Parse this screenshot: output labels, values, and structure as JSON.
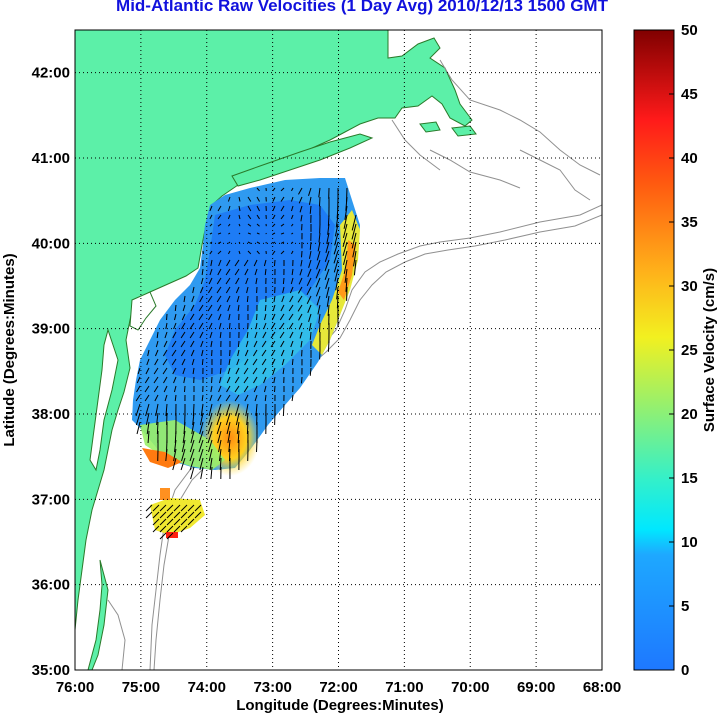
{
  "title": "Mid-Atlantic Raw Velocities (1 Day Avg) 2010/12/13 1500 GMT",
  "colors": {
    "land": "#5cf0a8",
    "coast": "#228b22",
    "bathymetry": "#909090",
    "grid": "#000000",
    "arrow": "#000000"
  },
  "chart_data": {
    "type": "heatmap",
    "xlabel": "Longitude (Degrees:Minutes)",
    "ylabel": "Latitude (Degrees:Minutes)",
    "xlim": [
      -76,
      -68
    ],
    "ylim": [
      35,
      42.5
    ],
    "x_ticks": [
      {
        "value": -76,
        "label": "76:00"
      },
      {
        "value": -75,
        "label": "75:00"
      },
      {
        "value": -74,
        "label": "74:00"
      },
      {
        "value": -73,
        "label": "73:00"
      },
      {
        "value": -72,
        "label": "72:00"
      },
      {
        "value": -71,
        "label": "71:00"
      },
      {
        "value": -70,
        "label": "70:00"
      },
      {
        "value": -69,
        "label": "69:00"
      },
      {
        "value": -68,
        "label": "68:00"
      }
    ],
    "y_ticks": [
      {
        "value": 35,
        "label": "35:00"
      },
      {
        "value": 36,
        "label": "36:00"
      },
      {
        "value": 37,
        "label": "37:00"
      },
      {
        "value": 38,
        "label": "38:00"
      },
      {
        "value": 39,
        "label": "39:00"
      },
      {
        "value": 40,
        "label": "40:00"
      },
      {
        "value": 41,
        "label": "41:00"
      },
      {
        "value": 42,
        "label": "42:00"
      }
    ],
    "grid": true,
    "colorbar": {
      "label": "Surface Velocity (cm/s)",
      "range": [
        0,
        50
      ],
      "ticks": [
        {
          "value": 0,
          "label": "0"
        },
        {
          "value": 5,
          "label": "5"
        },
        {
          "value": 10,
          "label": "10"
        },
        {
          "value": 15,
          "label": "15"
        },
        {
          "value": 20,
          "label": "20"
        },
        {
          "value": 25,
          "label": "25"
        },
        {
          "value": 30,
          "label": "30"
        },
        {
          "value": 35,
          "label": "35"
        },
        {
          "value": 40,
          "label": "40"
        },
        {
          "value": 45,
          "label": "45"
        },
        {
          "value": 50,
          "label": "50"
        }
      ],
      "colormap": "jet"
    },
    "velocity_field": [
      {
        "lon": -74.5,
        "lat": 40.2,
        "speed": 7
      },
      {
        "lon": -73.5,
        "lat": 40.3,
        "speed": 8
      },
      {
        "lon": -72.5,
        "lat": 40.4,
        "speed": 12
      },
      {
        "lon": -72.1,
        "lat": 39.9,
        "speed": 26
      },
      {
        "lon": -72.0,
        "lat": 39.5,
        "speed": 30
      },
      {
        "lon": -74.5,
        "lat": 39.3,
        "speed": 5
      },
      {
        "lon": -73.5,
        "lat": 39.2,
        "speed": 7
      },
      {
        "lon": -72.5,
        "lat": 38.9,
        "speed": 18
      },
      {
        "lon": -72.8,
        "lat": 38.9,
        "speed": 30
      },
      {
        "lon": -74.7,
        "lat": 38.3,
        "speed": 9
      },
      {
        "lon": -73.8,
        "lat": 38.0,
        "speed": 30
      },
      {
        "lon": -73.1,
        "lat": 37.9,
        "speed": 14
      },
      {
        "lon": -74.5,
        "lat": 37.5,
        "speed": 33
      },
      {
        "lon": -74.2,
        "lat": 37.7,
        "speed": 24
      },
      {
        "lon": -74.4,
        "lat": 37.0,
        "speed": 30
      },
      {
        "lon": -74.2,
        "lat": 36.9,
        "speed": 22
      },
      {
        "lon": -74.4,
        "lat": 36.6,
        "speed": 42
      }
    ]
  }
}
